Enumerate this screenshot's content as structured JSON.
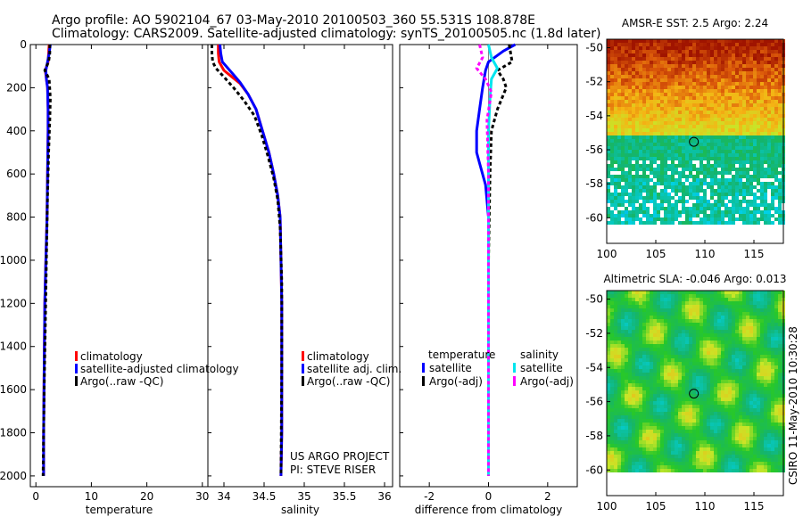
{
  "header": {
    "line1": "Argo profile: AO 5902104_67 03-May-2010 20100503_360 55.531S 108.878E",
    "line2": "Climatology: CARS2009. Satellite-adjusted climatology: synTS_20100505.nc (1.8d later)"
  },
  "stamp": "CSIRO 11-May-2010 10:30:28",
  "colors": {
    "climatology": "#ff0000",
    "satellite": "#0000ff",
    "argo": "#000000",
    "sat_diff_sal": "#00e5ee",
    "argo_diff_sal": "#ff00ff"
  },
  "chart_data": [
    {
      "type": "line",
      "id": "temperature",
      "xlabel": "temperature",
      "xlim": [
        -1,
        31
      ],
      "ylim": [
        0,
        2050
      ],
      "y_inverted": true,
      "xticks": [
        0,
        10,
        20,
        30
      ],
      "xtick_labels": [
        "0",
        "10",
        "20",
        "30"
      ],
      "yticks": [
        0,
        200,
        400,
        600,
        800,
        1000,
        1200,
        1400,
        1600,
        1800,
        2000
      ],
      "ytick_labels": [
        "0",
        "200",
        "400",
        "600",
        "800",
        "1000",
        "1200",
        "1400",
        "1600",
        "1800",
        "2000"
      ],
      "legend": {
        "placement": "lower-center",
        "entries": [
          "climatology",
          "satellite-adjusted climatology",
          "Argo(..raw -QC)"
        ]
      },
      "series": [
        {
          "name": "climatology",
          "style": "solid",
          "x": [
            2.4,
            2.3,
            2.2,
            1.7,
            1.9,
            2.1,
            2.2,
            2.2,
            2.1,
            2.0,
            1.8,
            1.6,
            1.5,
            1.4,
            1.4
          ],
          "y": [
            0,
            40,
            80,
            120,
            160,
            200,
            300,
            400,
            600,
            800,
            1000,
            1200,
            1500,
            1800,
            2000
          ]
        },
        {
          "name": "satellite-adjusted climatology",
          "style": "solid",
          "x": [
            2.6,
            2.4,
            2.1,
            1.8,
            1.9,
            2.1,
            2.2,
            2.2,
            2.1,
            2.0,
            1.8,
            1.6,
            1.5,
            1.4,
            1.4
          ],
          "y": [
            0,
            40,
            80,
            120,
            160,
            200,
            300,
            400,
            600,
            800,
            1000,
            1200,
            1500,
            1800,
            2000
          ]
        },
        {
          "name": "Argo(..raw -QC)",
          "style": "dashed",
          "x": [
            2.5,
            2.5,
            2.3,
            1.6,
            2.4,
            2.6,
            2.5,
            2.3,
            2.1,
            1.9,
            1.7,
            1.5,
            1.3
          ],
          "y": [
            0,
            40,
            80,
            120,
            160,
            250,
            350,
            500,
            700,
            1000,
            1300,
            1600,
            2000
          ]
        }
      ]
    },
    {
      "type": "line",
      "id": "salinity",
      "xlabel": "salinity",
      "xlim": [
        33.8,
        36.1
      ],
      "ylim": [
        0,
        2050
      ],
      "y_inverted": true,
      "xticks": [
        34,
        34.5,
        35,
        35.5,
        36
      ],
      "xtick_labels": [
        "34",
        "34.5",
        "35",
        "35.5",
        "36"
      ],
      "legend": {
        "placement": "lower-center",
        "entries": [
          "climatology",
          "satellite adj. clim.",
          "Argo(..raw -QC)"
        ]
      },
      "annotation": [
        "US ARGO PROJECT",
        "PI: STEVE RISER"
      ],
      "series": [
        {
          "name": "climatology",
          "style": "solid",
          "x": [
            33.93,
            33.93,
            33.94,
            34.0,
            34.1,
            34.2,
            34.3,
            34.4,
            34.48,
            34.56,
            34.62,
            34.67,
            34.7,
            34.71,
            34.72,
            34.72,
            34.72,
            34.71
          ],
          "y": [
            0,
            40,
            80,
            120,
            150,
            180,
            230,
            300,
            400,
            500,
            600,
            700,
            800,
            1000,
            1200,
            1500,
            1800,
            2000
          ]
        },
        {
          "name": "satellite adj. clim.",
          "style": "solid",
          "x": [
            33.95,
            33.96,
            33.98,
            34.05,
            34.12,
            34.2,
            34.3,
            34.4,
            34.48,
            34.56,
            34.62,
            34.67,
            34.7,
            34.71,
            34.72,
            34.72,
            34.72,
            34.71
          ],
          "y": [
            0,
            40,
            80,
            110,
            140,
            175,
            230,
            300,
            400,
            500,
            600,
            700,
            800,
            1000,
            1200,
            1500,
            1800,
            2000
          ]
        },
        {
          "name": "Argo(..raw -QC)",
          "style": "dashed",
          "x": [
            33.85,
            33.85,
            33.86,
            33.9,
            34.0,
            34.12,
            34.25,
            34.38,
            34.47,
            34.55,
            34.62,
            34.67,
            34.7,
            34.72,
            34.72,
            34.71
          ],
          "y": [
            0,
            40,
            80,
            110,
            150,
            200,
            260,
            330,
            420,
            520,
            620,
            720,
            850,
            1100,
            1500,
            2000
          ]
        }
      ]
    },
    {
      "type": "line",
      "id": "difference",
      "xlabel": "difference from climatology",
      "xlim": [
        -3,
        3
      ],
      "ylim": [
        0,
        2050
      ],
      "y_inverted": true,
      "xticks": [
        -2,
        0,
        2
      ],
      "xtick_labels": [
        "-2",
        "0",
        "2"
      ],
      "legend": {
        "placement": "lower-center",
        "groups": [
          "temperature",
          "salinity"
        ],
        "entries": [
          "satellite",
          "Argo(-adj)",
          "satellite",
          "Argo(-adj)"
        ]
      },
      "series": [
        {
          "name": "temperature satellite",
          "style": "solid",
          "x": [
            0.9,
            0.5,
            0.0,
            -0.1,
            -0.2,
            -0.3,
            -0.4,
            -0.4,
            -0.3,
            -0.1,
            0.0,
            0.0,
            0.0,
            0.0
          ],
          "y": [
            0,
            30,
            80,
            120,
            200,
            300,
            400,
            500,
            550,
            650,
            800,
            1000,
            1500,
            2000
          ]
        },
        {
          "name": "temperature Argo(-adj)",
          "style": "dashed",
          "x": [
            0.7,
            0.8,
            0.3,
            0.5,
            0.6,
            0.3,
            0.1,
            0.05,
            0.0,
            0.0
          ],
          "y": [
            0,
            80,
            120,
            160,
            200,
            300,
            400,
            600,
            1000,
            2000
          ]
        },
        {
          "name": "salinity satellite",
          "style": "solid",
          "x": [
            0.0,
            0.1,
            0.3,
            0.1,
            0.05,
            0.0,
            0.0,
            0.0
          ],
          "y": [
            0,
            60,
            110,
            160,
            250,
            400,
            1000,
            2000
          ]
        },
        {
          "name": "salinity Argo(-adj)",
          "style": "dashed",
          "x": [
            -0.3,
            -0.2,
            -0.4,
            -0.1,
            0.1,
            -0.05,
            0.0,
            0.0
          ],
          "y": [
            0,
            60,
            110,
            160,
            220,
            350,
            600,
            2000
          ]
        }
      ]
    },
    {
      "type": "heatmap",
      "id": "sst-map",
      "title": "AMSR-E SST: 2.5 Argo: 2.24",
      "xlim": [
        100,
        118
      ],
      "ylim": [
        -61.5,
        -49.5
      ],
      "xticks": [
        100,
        105,
        110,
        115
      ],
      "xtick_labels": [
        "100",
        "105",
        "110",
        "115"
      ],
      "yticks": [
        -60,
        -58,
        -56,
        -54,
        -52,
        -50
      ],
      "ytick_labels": [
        "-60",
        "-58",
        "-56",
        "-54",
        "-52",
        "-50"
      ],
      "marker": {
        "lon": 108.878,
        "lat": -55.531
      }
    },
    {
      "type": "heatmap",
      "id": "sla-map",
      "title": "Altimetric SLA: -0.046 Argo: 0.013",
      "xlim": [
        100,
        118
      ],
      "ylim": [
        -61.5,
        -49.5
      ],
      "xticks": [
        100,
        105,
        110,
        115
      ],
      "xtick_labels": [
        "100",
        "105",
        "110",
        "115"
      ],
      "yticks": [
        -60,
        -58,
        -56,
        -54,
        -52,
        -50
      ],
      "ytick_labels": [
        "-60",
        "-58",
        "-56",
        "-54",
        "-52",
        "-50"
      ],
      "marker": {
        "lon": 108.878,
        "lat": -55.531
      }
    }
  ]
}
